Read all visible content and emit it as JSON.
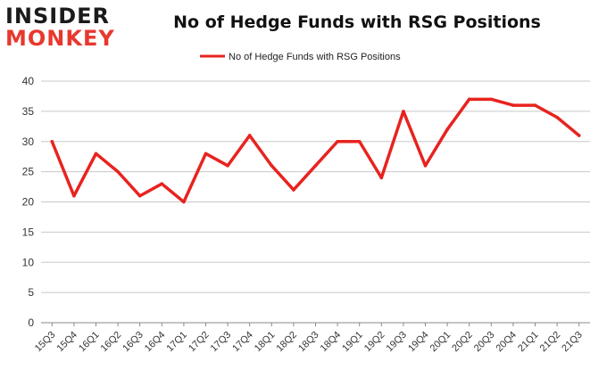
{
  "logo": {
    "line1": "INSIDER",
    "line2": "MONKEY"
  },
  "chart_data": {
    "type": "line",
    "title": "No of Hedge Funds with RSG Positions",
    "xlabel": "",
    "ylabel": "",
    "categories": [
      "15Q3",
      "15Q4",
      "16Q1",
      "16Q2",
      "16Q3",
      "16Q4",
      "17Q1",
      "17Q2",
      "17Q3",
      "17Q4",
      "18Q1",
      "18Q2",
      "18Q3",
      "18Q4",
      "19Q1",
      "19Q2",
      "19Q3",
      "19Q4",
      "20Q1",
      "20Q2",
      "20Q3",
      "20Q4",
      "21Q1",
      "21Q2",
      "21Q3"
    ],
    "series": [
      {
        "name": "No of Hedge Funds with RSG Positions",
        "color": "#e8231f",
        "values": [
          30,
          21,
          28,
          25,
          21,
          23,
          20,
          28,
          26,
          31,
          26,
          22,
          26,
          30,
          30,
          24,
          35,
          26,
          32,
          37,
          37,
          36,
          36,
          34,
          31
        ]
      }
    ],
    "ylim": [
      0,
      40
    ],
    "yticks": [
      0,
      5,
      10,
      15,
      20,
      25,
      30,
      35,
      40
    ],
    "grid": true,
    "legend": "top-center"
  }
}
